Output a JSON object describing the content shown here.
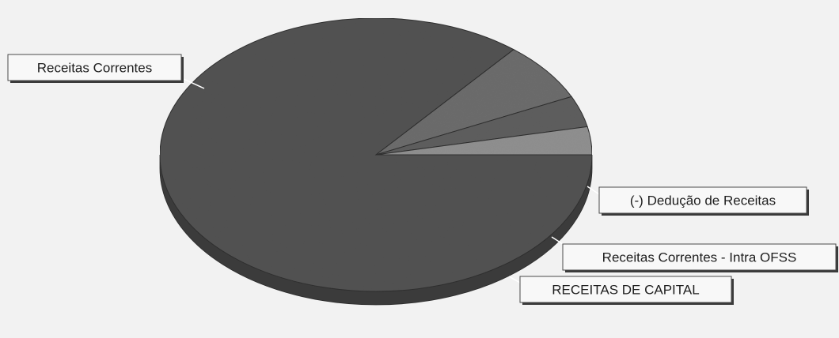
{
  "chart_data": {
    "type": "pie",
    "title": "",
    "slices": [
      {
        "label": "Receitas Correntes",
        "value": 86.0,
        "color": "#525252"
      },
      {
        "label": "(-) Dedução de Receitas",
        "value": 7.0,
        "color": "#6c6c6c"
      },
      {
        "label": "Receitas Correntes - Intra OFSS",
        "value": 3.7,
        "color": "#5e5e5e"
      },
      {
        "label": "RECEITAS DE CAPITAL",
        "value": 3.3,
        "color": "#8f8f8f"
      }
    ],
    "style": "3d-tilted",
    "start_angle_deg": 0,
    "direction": "clockwise",
    "legend": "none",
    "label_style": "callout-boxes"
  }
}
